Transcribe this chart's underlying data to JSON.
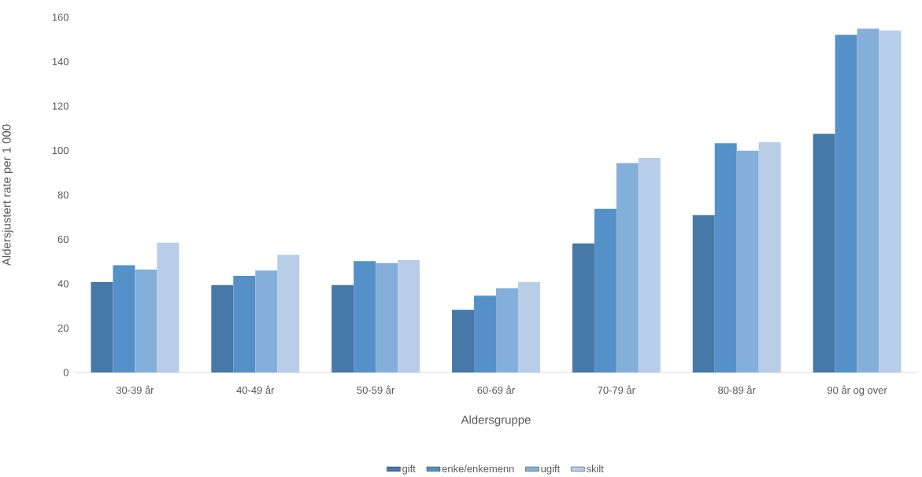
{
  "chart_data": {
    "type": "bar",
    "xlabel": "Aldersgruppe",
    "ylabel": "Aldersjustert rate per 1 000",
    "categories": [
      "30-39 år",
      "40-49 år",
      "50-59 år",
      "60-69 år",
      "70-79 år",
      "80-89 år",
      "90 år og over"
    ],
    "series": [
      {
        "name": "gift",
        "color": "#4678a8",
        "values": [
          40.7,
          39.4,
          39.4,
          28.2,
          58.1,
          70.9,
          107.5
        ]
      },
      {
        "name": "enke/enkemenn",
        "color": "#5591c8",
        "values": [
          48.3,
          43.5,
          50.2,
          34.6,
          73.7,
          103.3,
          152.1
        ]
      },
      {
        "name": "ugift",
        "color": "#85afdb",
        "values": [
          46.4,
          45.9,
          49.3,
          38.0,
          94.3,
          99.9,
          154.9
        ]
      },
      {
        "name": "skilt",
        "color": "#b8cde8",
        "values": [
          58.5,
          53.0,
          50.6,
          40.7,
          96.6,
          103.7,
          154.1
        ]
      }
    ],
    "ylim": [
      0,
      160
    ],
    "yticks": [
      0,
      20,
      40,
      60,
      80,
      100,
      120,
      140,
      160
    ],
    "legend": "bottom"
  }
}
